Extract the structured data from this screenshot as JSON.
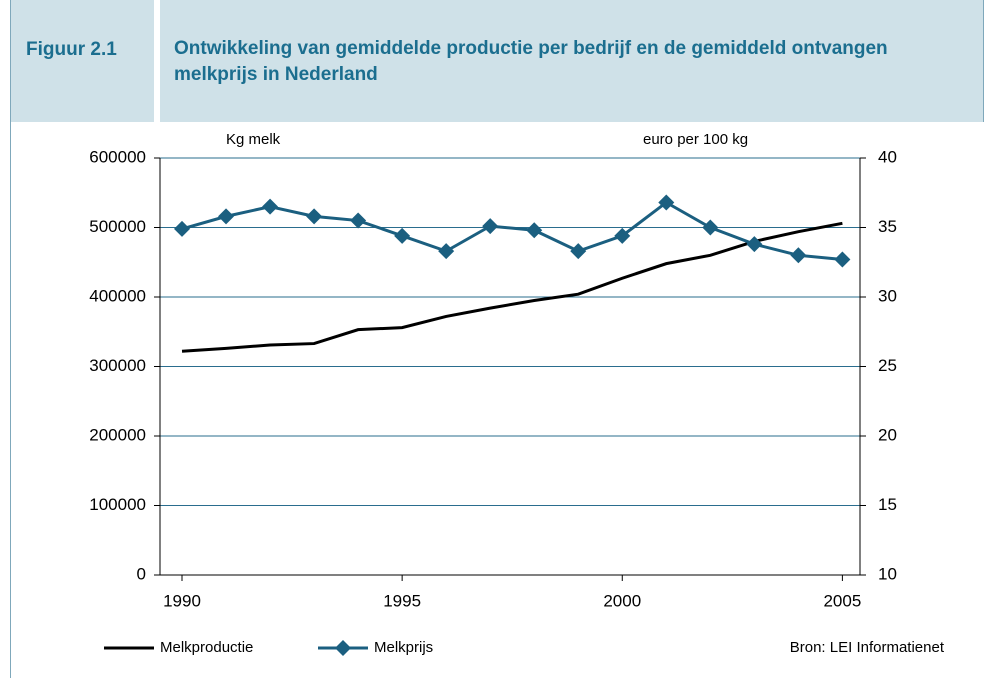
{
  "chart_data": {
    "type": "line",
    "figure_label": "Figuur 2.1",
    "title": "Ontwikkeling van gemiddelde productie per bedrijf en de gemiddeld ontvangen melkprijs in Nederland",
    "y_label": "Kg melk",
    "y2_label": "euro per 100 kg",
    "source": "Bron: LEI Informatienet",
    "x": [
      1990,
      1991,
      1992,
      1993,
      1994,
      1995,
      1996,
      1997,
      1998,
      1999,
      2000,
      2001,
      2002,
      2003,
      2004,
      2005
    ],
    "series": [
      {
        "name": "Melkproductie",
        "color": "#000000",
        "marker": "none",
        "values": [
          322000,
          326000,
          331000,
          333000,
          353000,
          356000,
          372000,
          384000,
          395000,
          404000,
          427000,
          448000,
          460000,
          480000,
          494000,
          506000
        ]
      },
      {
        "name": "Melkprijs",
        "color": "#1b5f80",
        "marker": "diamond",
        "axis": "y2",
        "values": [
          34.9,
          35.8,
          36.5,
          35.8,
          35.5,
          34.4,
          33.3,
          35.1,
          34.8,
          33.3,
          34.4,
          36.8,
          35.0,
          33.8,
          33.0,
          32.7
        ]
      }
    ],
    "xlim": [
      1989.5,
      2005.4
    ],
    "xticks": [
      1990,
      1995,
      2000,
      2005
    ],
    "ylim": [
      0,
      600000
    ],
    "yticks": [
      0,
      100000,
      200000,
      300000,
      400000,
      500000,
      600000
    ],
    "y2lim": [
      10,
      40
    ],
    "y2ticks": [
      10,
      15,
      20,
      25,
      30,
      35,
      40
    ],
    "grid": true,
    "grid_color": "#2a6d8e"
  }
}
